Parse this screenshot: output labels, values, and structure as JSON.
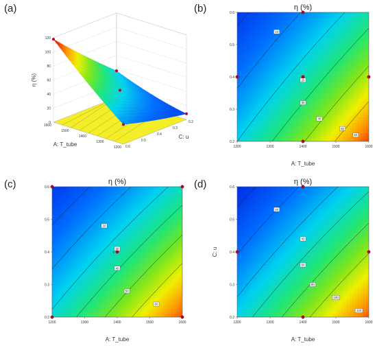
{
  "panel_labels": [
    "(a)",
    "(b)",
    "(c)",
    "(d)"
  ],
  "chart_data": [
    {
      "panel": "(a)",
      "type": "surface3d",
      "zlabel": "η (%)",
      "xlabel": "A: T_tube",
      "ylabel": "C: u",
      "z_ticks": [
        "0",
        "20",
        "40",
        "60",
        "80",
        "100",
        "120"
      ],
      "x_ticks": [
        "1200",
        "1300",
        "1400",
        "1500",
        "1600"
      ],
      "y_ticks": [
        "0.2",
        "0.3",
        "0.4",
        "0.5",
        "0.6"
      ],
      "corner_values": {
        "T1200_u0.2": 8,
        "T1600_u0.2": 52,
        "T1200_u0.6": 20,
        "T1600_u0.6": 112
      },
      "center_point": {
        "T": 1400,
        "u": 0.4,
        "eta": 34
      }
    },
    {
      "panel": "(b)",
      "type": "contour",
      "title": "η (%)",
      "xlabel": "A: T_tube",
      "ylabel": "",
      "xlim": [
        1200,
        1600
      ],
      "ylim": [
        0.2,
        0.6
      ],
      "x_ticks": [
        "1200",
        "1300",
        "1400",
        "1500",
        "1600"
      ],
      "y_ticks": [
        "0.2",
        "0.3",
        "0.4",
        "0.5",
        "0.6"
      ],
      "contour_levels": [
        10,
        20,
        30,
        40,
        50,
        60
      ],
      "contour_labels": [
        "10",
        "20",
        "30",
        "40",
        "50",
        "60"
      ],
      "design_points": [
        [
          1200,
          0.4
        ],
        [
          1400,
          0.6
        ],
        [
          1600,
          0.4
        ],
        [
          1400,
          0.2
        ],
        [
          1400,
          0.4
        ]
      ]
    },
    {
      "panel": "(c)",
      "type": "contour",
      "title": "η (%)",
      "xlabel": "A: T_tube",
      "ylabel": "",
      "xlim": [
        1200,
        1600
      ],
      "ylim": [
        0.2,
        0.6
      ],
      "x_ticks": [
        "1200",
        "1300",
        "1400",
        "1500",
        "1600"
      ],
      "y_ticks": [
        "0.2",
        "0.3",
        "0.4",
        "0.5",
        "0.6"
      ],
      "contour_levels": [
        20,
        30,
        40,
        50,
        60,
        70
      ],
      "contour_labels": [
        "20",
        "30",
        "40",
        "50",
        "60"
      ],
      "design_points": [
        [
          1200,
          0.6
        ],
        [
          1600,
          0.6
        ],
        [
          1200,
          0.2
        ],
        [
          1600,
          0.2
        ],
        [
          1400,
          0.4
        ]
      ],
      "center_label": "5"
    },
    {
      "panel": "(d)",
      "type": "contour",
      "title": "η (%)",
      "xlabel": "A: T_tube",
      "ylabel": "C: u",
      "xlim": [
        1200,
        1600
      ],
      "ylim": [
        0.2,
        0.6
      ],
      "x_ticks": [
        "1200",
        "1300",
        "1400",
        "1500",
        "1600"
      ],
      "y_ticks": [
        "0.2",
        "0.3",
        "0.4",
        "0.5",
        "0.6"
      ],
      "contour_levels": [
        20,
        40,
        60,
        80,
        100,
        120
      ],
      "contour_labels": [
        "20",
        "40",
        "60",
        "80",
        "100",
        "120"
      ],
      "design_points": [
        [
          1400,
          0.6
        ],
        [
          1200,
          0.4
        ],
        [
          1600,
          0.4
        ],
        [
          1400,
          0.2
        ]
      ]
    }
  ]
}
